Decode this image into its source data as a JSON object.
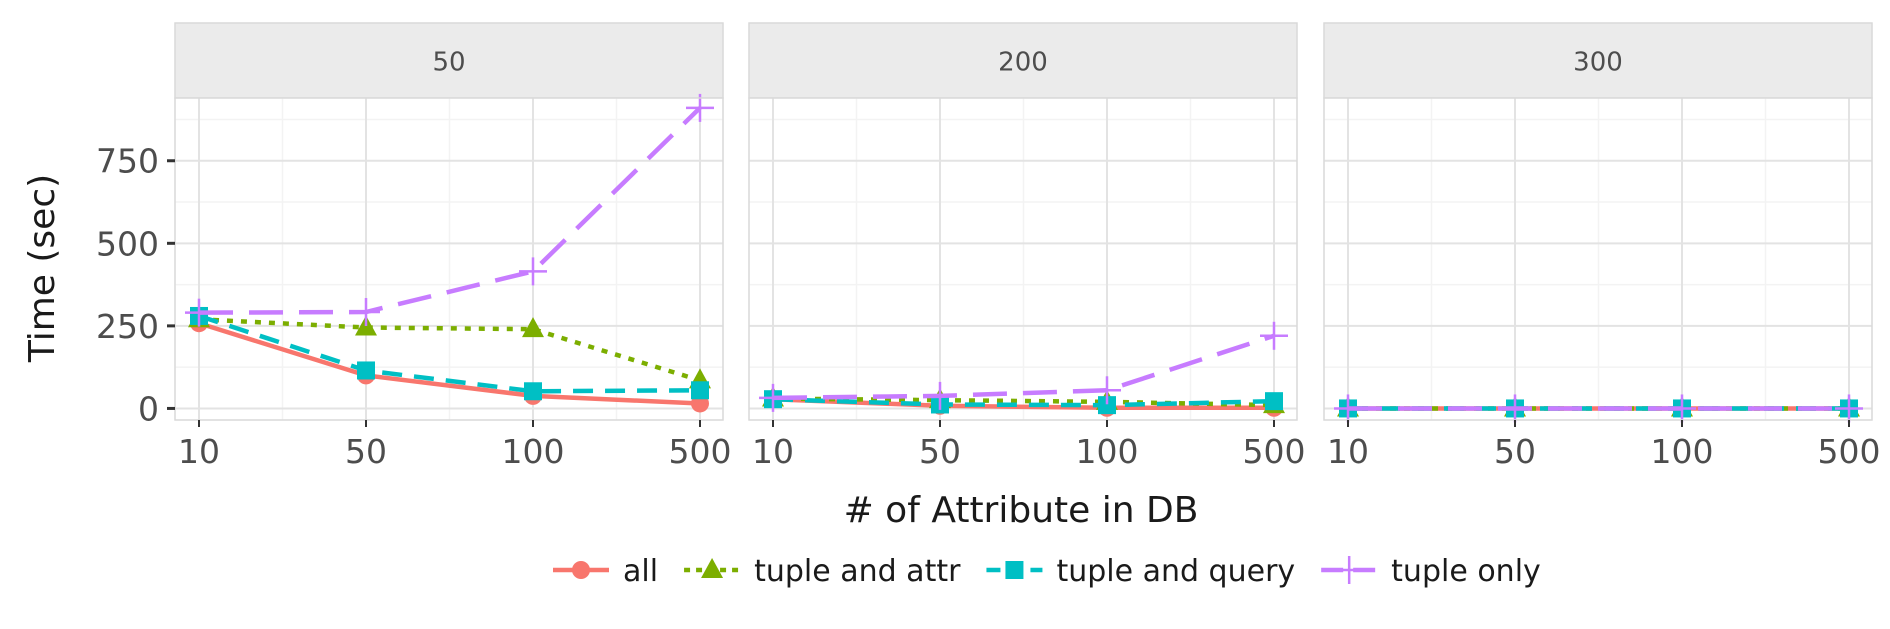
{
  "chart_data": {
    "type": "line",
    "facet_labels": [
      "50",
      "200",
      "300"
    ],
    "categories": [
      "10",
      "50",
      "100",
      "500"
    ],
    "xlabel": "# of Attribute in DB",
    "ylabel": "Time (sec)",
    "ylim": [
      -35,
      940
    ],
    "yticks": [
      0,
      250,
      500,
      750
    ],
    "y_tick_labels": [
      "0",
      "250",
      "500",
      "750"
    ],
    "grid": true,
    "legend_position": "bottom",
    "series": [
      {
        "name": "all",
        "color": "#F8766D",
        "marker": "circle",
        "dash": "solid",
        "facets": [
          [
            258,
            100,
            38,
            15
          ],
          [
            28,
            8,
            2,
            2
          ],
          [
            0,
            0,
            0,
            0
          ]
        ]
      },
      {
        "name": "tuple and attr",
        "color": "#7CAE00",
        "marker": "triangle",
        "dash": "dotted",
        "facets": [
          [
            270,
            245,
            240,
            85
          ],
          [
            30,
            25,
            20,
            10
          ],
          [
            0,
            0,
            0,
            0
          ]
        ]
      },
      {
        "name": "tuple and query",
        "color": "#00BFC4",
        "marker": "square",
        "dash": "dashed",
        "facets": [
          [
            280,
            115,
            52,
            55
          ],
          [
            28,
            12,
            10,
            22
          ],
          [
            0,
            0,
            0,
            0
          ]
        ]
      },
      {
        "name": "tuple only",
        "color": "#C77CFF",
        "marker": "cross",
        "dash": "longdash",
        "facets": [
          [
            290,
            292,
            415,
            910
          ],
          [
            32,
            38,
            55,
            220
          ],
          [
            0,
            0,
            0,
            0
          ]
        ]
      }
    ]
  }
}
